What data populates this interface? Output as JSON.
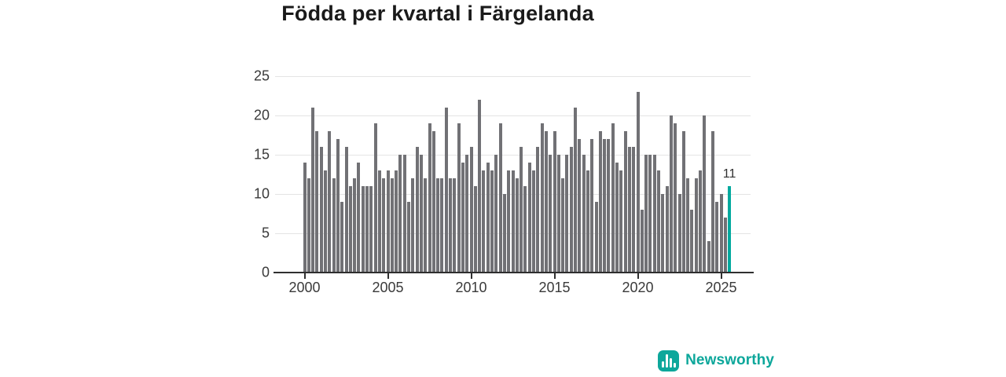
{
  "title": "Födda per kvartal i Färgelanda",
  "annotation": {
    "last_value_label": "11"
  },
  "watermark": {
    "brand": "Newsworthy"
  },
  "colors": {
    "bar": "#717175",
    "highlight": "#00a99e",
    "title": "#1a1a1a",
    "tick_text": "#3a3a3a",
    "gridline": "#e4e4e4",
    "axis": "#2f2f2f",
    "brand_teal": "#0da79b"
  },
  "chart_data": {
    "type": "bar",
    "title": "Födda per kvartal i Färgelanda",
    "x_start": "2000-Q1",
    "x_end": "2025-Q3",
    "x_frequency": "quarterly",
    "xlabel": "",
    "ylabel": "",
    "ylim": [
      0,
      25
    ],
    "y_ticks": [
      0,
      5,
      10,
      15,
      20,
      25
    ],
    "x_ticks": [
      2000,
      2005,
      2010,
      2015,
      2020,
      2025
    ],
    "grid": "horizontal",
    "legend": "none",
    "highlight_last_bar": true,
    "highlight_last_label": "11",
    "values": [
      14,
      12,
      21,
      18,
      16,
      13,
      18,
      12,
      17,
      9,
      16,
      11,
      12,
      14,
      11,
      11,
      11,
      19,
      13,
      12,
      13,
      12,
      13,
      15,
      15,
      9,
      12,
      16,
      15,
      12,
      19,
      18,
      12,
      12,
      21,
      12,
      12,
      19,
      14,
      15,
      16,
      11,
      22,
      13,
      14,
      13,
      15,
      19,
      10,
      13,
      13,
      12,
      16,
      11,
      14,
      13,
      16,
      19,
      18,
      15,
      18,
      15,
      12,
      15,
      16,
      21,
      17,
      15,
      13,
      17,
      9,
      18,
      17,
      17,
      19,
      14,
      13,
      18,
      16,
      16,
      23,
      8,
      15,
      15,
      15,
      13,
      10,
      11,
      20,
      19,
      10,
      18,
      12,
      8,
      12,
      13,
      20,
      4,
      18,
      9,
      10,
      7,
      11
    ]
  }
}
